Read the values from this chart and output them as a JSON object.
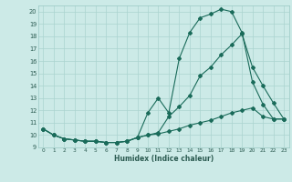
{
  "xlabel": "Humidex (Indice chaleur)",
  "bg_color": "#cceae7",
  "grid_color": "#aad4d0",
  "line_color": "#1a6b5a",
  "xlim": [
    -0.5,
    23.5
  ],
  "ylim": [
    9.0,
    20.5
  ],
  "yticks": [
    9,
    10,
    11,
    12,
    13,
    14,
    15,
    16,
    17,
    18,
    19,
    20
  ],
  "xticks": [
    0,
    1,
    2,
    3,
    4,
    5,
    6,
    7,
    8,
    9,
    10,
    11,
    12,
    13,
    14,
    15,
    16,
    17,
    18,
    19,
    20,
    21,
    22,
    23
  ],
  "line1_x": [
    0,
    1,
    2,
    3,
    4,
    5,
    6,
    7,
    8,
    9,
    10,
    11,
    12,
    13,
    14,
    15,
    16,
    17,
    18,
    19,
    20,
    21,
    22,
    23
  ],
  "line1_y": [
    10.5,
    10.0,
    9.7,
    9.6,
    9.5,
    9.5,
    9.4,
    9.4,
    9.5,
    9.8,
    11.8,
    13.0,
    11.8,
    16.2,
    18.3,
    19.5,
    19.8,
    20.2,
    20.0,
    18.3,
    14.3,
    12.5,
    11.3,
    11.3
  ],
  "line2_x": [
    0,
    1,
    2,
    3,
    4,
    5,
    6,
    7,
    8,
    9,
    10,
    11,
    12,
    13,
    14,
    15,
    16,
    17,
    18,
    19,
    20,
    21,
    22,
    23
  ],
  "line2_y": [
    10.5,
    10.0,
    9.7,
    9.6,
    9.5,
    9.5,
    9.4,
    9.4,
    9.5,
    9.8,
    10.0,
    10.2,
    11.5,
    12.3,
    13.2,
    14.8,
    15.5,
    16.5,
    17.3,
    18.2,
    15.5,
    14.0,
    12.6,
    11.3
  ],
  "line3_x": [
    0,
    1,
    2,
    3,
    4,
    5,
    6,
    7,
    8,
    9,
    10,
    11,
    12,
    13,
    14,
    15,
    16,
    17,
    18,
    19,
    20,
    21,
    22,
    23
  ],
  "line3_y": [
    10.5,
    10.0,
    9.7,
    9.6,
    9.5,
    9.5,
    9.4,
    9.4,
    9.5,
    9.8,
    10.0,
    10.1,
    10.3,
    10.5,
    10.8,
    11.0,
    11.2,
    11.5,
    11.8,
    12.0,
    12.2,
    11.5,
    11.3,
    11.3
  ]
}
